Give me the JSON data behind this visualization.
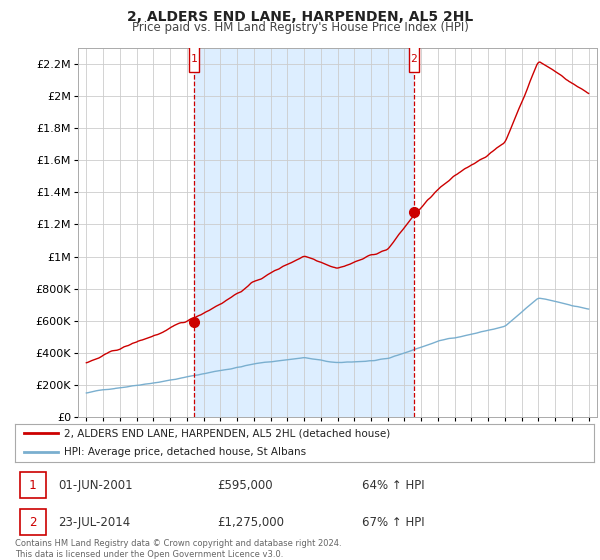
{
  "title": "2, ALDERS END LANE, HARPENDEN, AL5 2HL",
  "subtitle": "Price paid vs. HM Land Registry's House Price Index (HPI)",
  "legend_line1": "2, ALDERS END LANE, HARPENDEN, AL5 2HL (detached house)",
  "legend_line2": "HPI: Average price, detached house, St Albans",
  "footer": "Contains HM Land Registry data © Crown copyright and database right 2024.\nThis data is licensed under the Open Government Licence v3.0.",
  "annotation1_date": "01-JUN-2001",
  "annotation1_price": "£595,000",
  "annotation1_hpi": "64% ↑ HPI",
  "annotation2_date": "23-JUL-2014",
  "annotation2_price": "£1,275,000",
  "annotation2_hpi": "67% ↑ HPI",
  "red_color": "#cc0000",
  "blue_color": "#7aafcf",
  "shade_color": "#ddeeff",
  "dashed_color": "#cc0000",
  "background_color": "#ffffff",
  "grid_color": "#cccccc",
  "ylim": [
    0,
    2300000
  ],
  "yticks": [
    0,
    200000,
    400000,
    600000,
    800000,
    1000000,
    1200000,
    1400000,
    1600000,
    1800000,
    2000000,
    2200000
  ],
  "ytick_labels": [
    "£0",
    "£200K",
    "£400K",
    "£600K",
    "£800K",
    "£1M",
    "£1.2M",
    "£1.4M",
    "£1.6M",
    "£1.8M",
    "£2M",
    "£2.2M"
  ],
  "sale1_x": 2001.42,
  "sale1_y": 595000,
  "sale2_x": 2014.56,
  "sale2_y": 1275000,
  "xmin": 1995.0,
  "xmax": 2025.5
}
